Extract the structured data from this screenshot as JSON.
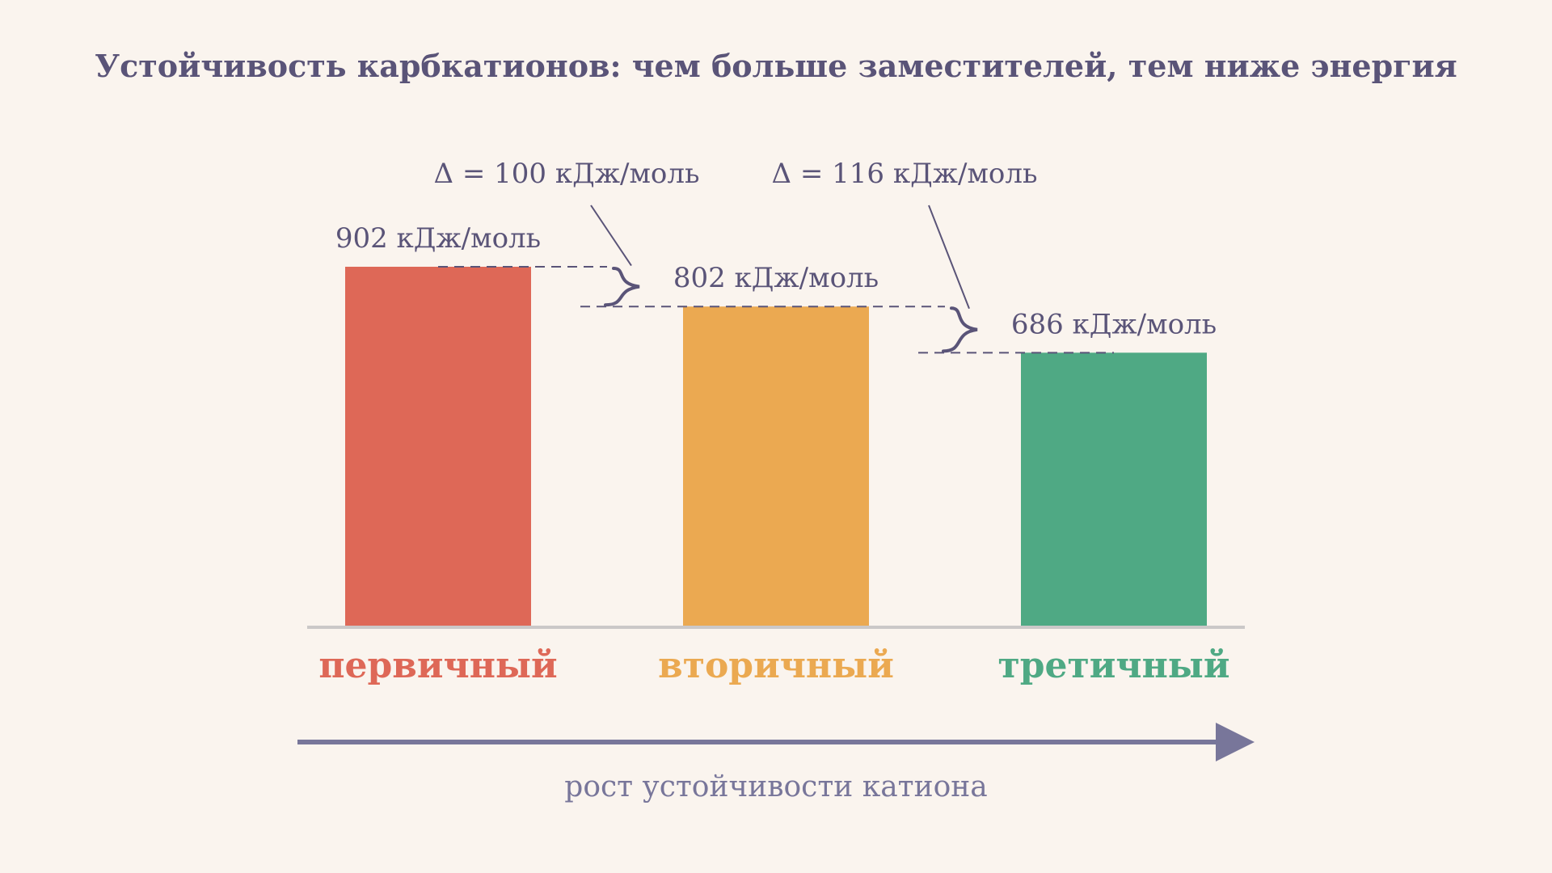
{
  "chart_data": {
    "type": "bar",
    "title": "Устойчивость карбкатионов: чем больше заместителей, тем ниже энергия",
    "categories": [
      "первичный",
      "вторичный",
      "третичный"
    ],
    "values": [
      902,
      802,
      686
    ],
    "value_labels": [
      "902 кДж/моль",
      "802 кДж/моль",
      "686 кДж/моль"
    ],
    "colors": [
      "#de6857",
      "#eba951",
      "#4fa984"
    ],
    "differences": [
      {
        "from": 0,
        "to": 1,
        "label": "Δ = 100 кДж/моль"
      },
      {
        "from": 1,
        "to": 2,
        "label": "Δ = 116 кДж/моль"
      }
    ],
    "arrow_caption": "рост устойчивости катиона",
    "ylim": [
      0,
      902
    ],
    "grid": false,
    "legend": "none"
  },
  "colors": {
    "background": "#faf4ee",
    "text": "#5a5478",
    "axis": "#cbc8c8",
    "arrow": "#78769a"
  }
}
